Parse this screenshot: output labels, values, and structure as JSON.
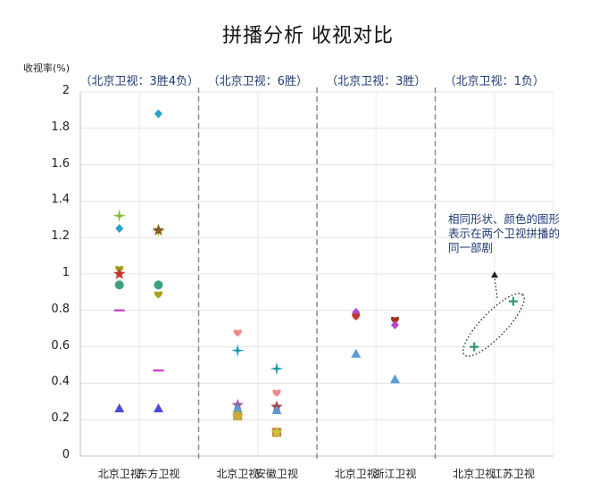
{
  "chart_data": {
    "type": "scatter",
    "title": "拼播分析  收视对比",
    "ylabel": "收视率(%)",
    "ylim": [
      0,
      2
    ],
    "yticks": [
      "0",
      "0.2",
      "0.4",
      "0.6",
      "0.8",
      "1",
      "1.2",
      "1.4",
      "1.6",
      "1.8",
      "2"
    ],
    "grid": true,
    "groups": [
      {
        "label": "（北京卫视：3胜4负）",
        "channels": [
          "北京卫视",
          "东方卫视"
        ]
      },
      {
        "label": "（北京卫视：6胜）",
        "channels": [
          "北京卫视",
          "安徽卫视"
        ]
      },
      {
        "label": "（北京卫视：3胜）",
        "channels": [
          "北京卫视",
          "浙江卫视"
        ]
      },
      {
        "label": "（北京卫视：1负）",
        "channels": [
          "北京卫视",
          "江苏卫视"
        ]
      }
    ],
    "annotation": "相同形状、颜色的图形表示在两个卫视拼播的同一部剧",
    "points": [
      {
        "group": 0,
        "channel": 0,
        "y": 1.32,
        "marker": "star4",
        "color": "#7dbb2d"
      },
      {
        "group": 0,
        "channel": 0,
        "y": 1.25,
        "marker": "diamond",
        "color": "#27a2c8"
      },
      {
        "group": 0,
        "channel": 0,
        "y": 1.03,
        "marker": "heart",
        "color": "#a6a21e"
      },
      {
        "group": 0,
        "channel": 0,
        "y": 1.0,
        "marker": "star5",
        "color": "#c0392b"
      },
      {
        "group": 0,
        "channel": 0,
        "y": 0.94,
        "marker": "circle",
        "color": "#3fa07e"
      },
      {
        "group": 0,
        "channel": 0,
        "y": 0.8,
        "marker": "dash",
        "color": "#cc44cc"
      },
      {
        "group": 0,
        "channel": 0,
        "y": 0.26,
        "marker": "triangle",
        "color": "#4b4bd6"
      },
      {
        "group": 0,
        "channel": 1,
        "y": 1.88,
        "marker": "diamond",
        "color": "#27a2c8"
      },
      {
        "group": 0,
        "channel": 1,
        "y": 1.24,
        "marker": "star4",
        "color": "#7dbb2d"
      },
      {
        "group": 0,
        "channel": 1,
        "y": 1.24,
        "marker": "star5",
        "color": "#8a5a1e"
      },
      {
        "group": 0,
        "channel": 1,
        "y": 0.94,
        "marker": "circle",
        "color": "#3fa07e"
      },
      {
        "group": 0,
        "channel": 1,
        "y": 0.89,
        "marker": "heart",
        "color": "#a6a21e"
      },
      {
        "group": 0,
        "channel": 1,
        "y": 0.47,
        "marker": "dash",
        "color": "#cc44cc"
      },
      {
        "group": 0,
        "channel": 1,
        "y": 0.26,
        "marker": "triangle",
        "color": "#4b4bd6"
      },
      {
        "group": 1,
        "channel": 0,
        "y": 0.68,
        "marker": "heart",
        "color": "#f08a8a"
      },
      {
        "group": 1,
        "channel": 0,
        "y": 0.58,
        "marker": "star4",
        "color": "#1a9bb0"
      },
      {
        "group": 1,
        "channel": 0,
        "y": 0.28,
        "marker": "star5",
        "color": "#9a5aa0"
      },
      {
        "group": 1,
        "channel": 0,
        "y": 0.26,
        "marker": "triangle",
        "color": "#5b9bd5"
      },
      {
        "group": 1,
        "channel": 0,
        "y": 0.22,
        "marker": "square",
        "color": "#a6b04a"
      },
      {
        "group": 1,
        "channel": 0,
        "y": 0.22,
        "marker": "star5",
        "color": "#d9a53a"
      },
      {
        "group": 1,
        "channel": 1,
        "y": 0.48,
        "marker": "star4",
        "color": "#1a9bb0"
      },
      {
        "group": 1,
        "channel": 1,
        "y": 0.35,
        "marker": "heart",
        "color": "#f08a8a"
      },
      {
        "group": 1,
        "channel": 1,
        "y": 0.27,
        "marker": "star5",
        "color": "#a04040"
      },
      {
        "group": 1,
        "channel": 1,
        "y": 0.25,
        "marker": "triangle",
        "color": "#5b9bd5"
      },
      {
        "group": 1,
        "channel": 1,
        "y": 0.13,
        "marker": "square",
        "color": "#c87a3a"
      },
      {
        "group": 1,
        "channel": 1,
        "y": 0.13,
        "marker": "star5",
        "color": "#c8c83a"
      },
      {
        "group": 2,
        "channel": 0,
        "y": 0.79,
        "marker": "diamond",
        "color": "#b04ad0"
      },
      {
        "group": 2,
        "channel": 0,
        "y": 0.77,
        "marker": "heart",
        "color": "#c0392b"
      },
      {
        "group": 2,
        "channel": 0,
        "y": 0.56,
        "marker": "triangle",
        "color": "#5b9bd5"
      },
      {
        "group": 2,
        "channel": 1,
        "y": 0.75,
        "marker": "heart",
        "color": "#a0331e"
      },
      {
        "group": 2,
        "channel": 1,
        "y": 0.72,
        "marker": "diamond",
        "color": "#b04ad0"
      },
      {
        "group": 2,
        "channel": 1,
        "y": 0.42,
        "marker": "triangle",
        "color": "#5b9bd5"
      },
      {
        "group": 3,
        "channel": 0,
        "y": 0.6,
        "marker": "plus",
        "color": "#2e9b6b"
      },
      {
        "group": 3,
        "channel": 1,
        "y": 0.85,
        "marker": "plus",
        "color": "#2e9b6b"
      }
    ]
  }
}
